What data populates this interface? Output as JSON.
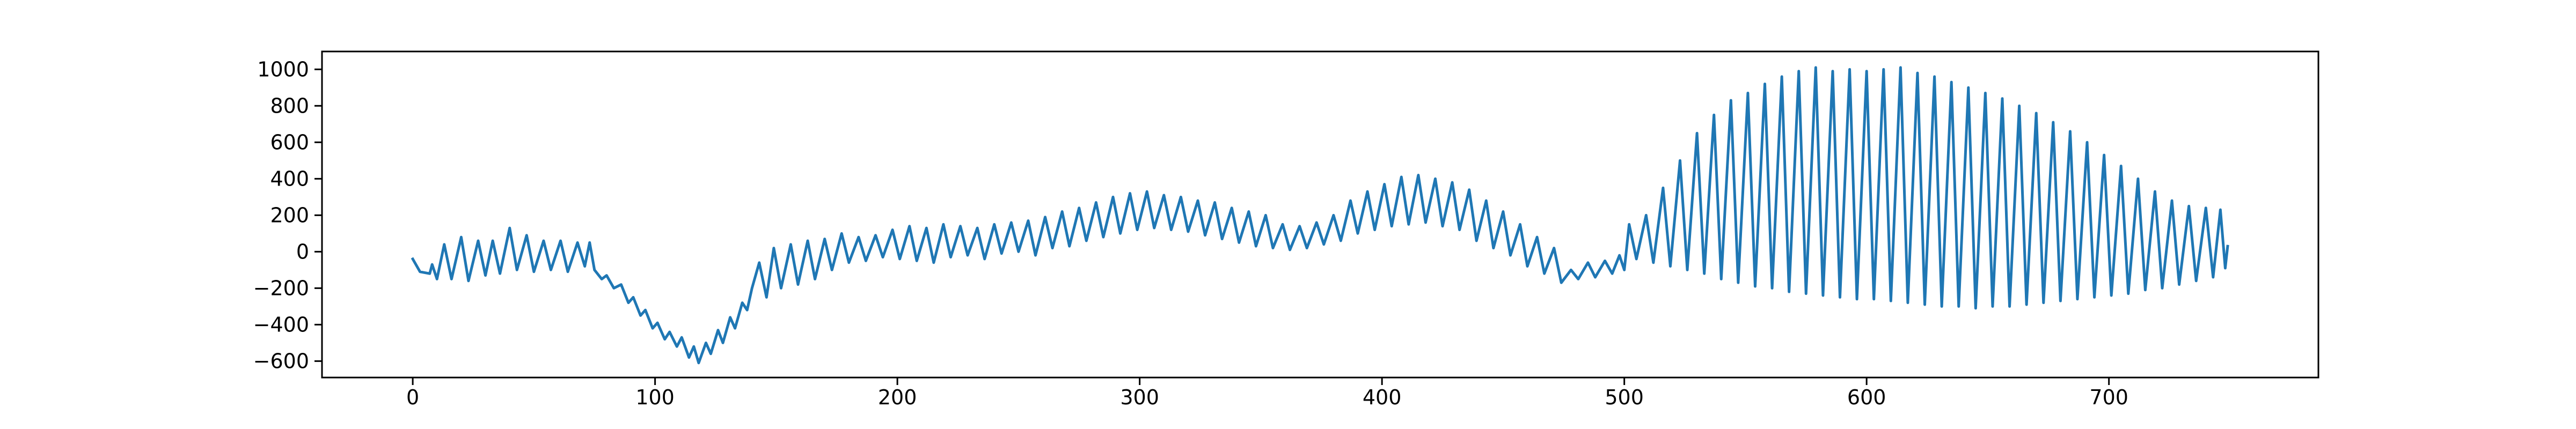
{
  "chart_data": {
    "type": "line",
    "color": "#1f77b4",
    "xlim": [
      -37.45,
      786.45
    ],
    "ylim": [
      -690,
      1098
    ],
    "xticks": [
      0,
      100,
      200,
      300,
      400,
      500,
      600,
      700
    ],
    "yticks": [
      {
        "value": -600,
        "label": "−600"
      },
      {
        "value": -400,
        "label": "−400"
      },
      {
        "value": -200,
        "label": "−200"
      },
      0,
      200,
      400,
      600,
      800,
      1000
    ],
    "x": [
      0,
      3,
      7,
      8,
      10,
      13,
      16,
      20,
      23,
      27,
      30,
      33,
      36,
      40,
      43,
      47,
      50,
      54,
      57,
      61,
      64,
      68,
      71,
      73,
      75,
      78,
      80,
      83,
      86,
      89,
      91,
      94,
      96,
      99,
      101,
      104,
      106,
      109,
      111,
      114,
      116,
      118,
      121,
      123,
      126,
      128,
      131,
      133,
      136,
      138,
      140,
      143,
      146,
      149,
      152,
      156,
      159,
      163,
      166,
      170,
      173,
      177,
      180,
      184,
      187,
      191,
      194,
      198,
      201,
      205,
      208,
      212,
      215,
      219,
      222,
      226,
      229,
      233,
      236,
      240,
      243,
      247,
      250,
      254,
      257,
      261,
      264,
      268,
      271,
      275,
      278,
      282,
      285,
      289,
      292,
      296,
      299,
      303,
      306,
      310,
      313,
      317,
      320,
      324,
      327,
      331,
      334,
      338,
      341,
      345,
      348,
      352,
      355,
      359,
      362,
      366,
      369,
      373,
      376,
      380,
      383,
      387,
      390,
      394,
      397,
      401,
      404,
      408,
      411,
      415,
      418,
      422,
      425,
      429,
      432,
      436,
      439,
      443,
      446,
      450,
      453,
      457,
      460,
      464,
      467,
      471,
      474,
      478,
      481,
      485,
      488,
      492,
      495,
      498,
      500,
      502,
      505,
      509,
      512,
      516,
      519,
      523,
      526,
      530,
      533,
      537,
      540,
      544,
      547,
      551,
      554,
      558,
      561,
      565,
      568,
      572,
      575,
      579,
      582,
      586,
      589,
      593,
      596,
      600,
      603,
      607,
      610,
      614,
      617,
      621,
      624,
      628,
      631,
      635,
      638,
      642,
      645,
      649,
      652,
      656,
      659,
      663,
      666,
      670,
      673,
      677,
      680,
      684,
      687,
      691,
      694,
      698,
      701,
      705,
      708,
      712,
      715,
      719,
      722,
      726,
      729,
      733,
      736,
      740,
      743,
      746,
      748,
      749
    ],
    "y": [
      -40,
      -110,
      -120,
      -70,
      -150,
      40,
      -150,
      80,
      -160,
      60,
      -130,
      60,
      -120,
      130,
      -100,
      90,
      -110,
      60,
      -100,
      60,
      -110,
      50,
      -80,
      50,
      -100,
      -150,
      -130,
      -200,
      -180,
      -280,
      -250,
      -350,
      -320,
      -420,
      -390,
      -480,
      -440,
      -520,
      -470,
      -580,
      -520,
      -610,
      -500,
      -560,
      -430,
      -500,
      -360,
      -420,
      -280,
      -320,
      -200,
      -60,
      -250,
      20,
      -200,
      40,
      -180,
      60,
      -150,
      70,
      -100,
      100,
      -60,
      80,
      -50,
      90,
      -30,
      120,
      -40,
      140,
      -50,
      130,
      -60,
      150,
      -30,
      140,
      -20,
      130,
      -40,
      150,
      -10,
      160,
      0,
      170,
      -20,
      190,
      20,
      220,
      30,
      240,
      60,
      270,
      80,
      300,
      100,
      320,
      120,
      330,
      130,
      310,
      120,
      300,
      110,
      280,
      90,
      270,
      70,
      240,
      50,
      220,
      30,
      200,
      20,
      150,
      10,
      140,
      20,
      160,
      40,
      200,
      60,
      280,
      100,
      330,
      120,
      370,
      140,
      410,
      150,
      420,
      160,
      400,
      140,
      380,
      120,
      340,
      60,
      280,
      20,
      220,
      -20,
      150,
      -80,
      80,
      -120,
      20,
      -170,
      -100,
      -150,
      -60,
      -140,
      -50,
      -120,
      -20,
      -100,
      150,
      -40,
      200,
      -60,
      350,
      -80,
      500,
      -100,
      650,
      -120,
      750,
      -150,
      830,
      -170,
      870,
      -190,
      920,
      -200,
      960,
      -220,
      990,
      -230,
      1010,
      -240,
      990,
      -250,
      1000,
      -260,
      990,
      -260,
      1000,
      -270,
      1010,
      -280,
      980,
      -290,
      960,
      -300,
      930,
      -300,
      900,
      -310,
      870,
      -300,
      840,
      -300,
      800,
      -290,
      760,
      -280,
      710,
      -270,
      660,
      -260,
      600,
      -250,
      530,
      -240,
      470,
      -230,
      400,
      -210,
      330,
      -200,
      280,
      -180,
      250,
      -160,
      240,
      -140,
      230,
      -90,
      30
    ]
  }
}
